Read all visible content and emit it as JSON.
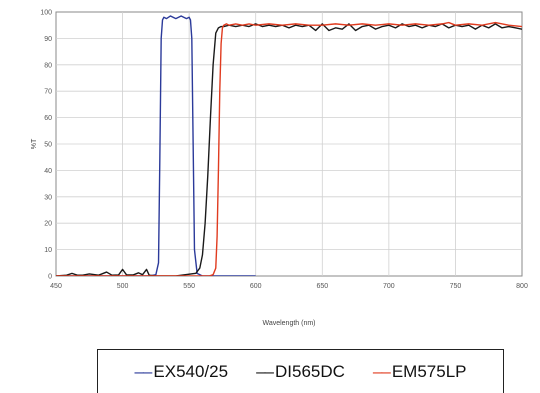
{
  "chart_data": {
    "type": "line",
    "title": "",
    "xlabel": "Wavelength (nm)",
    "ylabel": "%T",
    "xlim": [
      450,
      800
    ],
    "ylim": [
      0,
      100
    ],
    "grid": true,
    "legend_position": "bottom",
    "x_ticks": [
      450,
      500,
      550,
      600,
      650,
      700,
      750,
      800
    ],
    "y_ticks": [
      0,
      10,
      20,
      30,
      40,
      50,
      60,
      70,
      80,
      90,
      100
    ],
    "x_tick_labels": [
      "450",
      "500",
      "550",
      "600",
      "650",
      "700",
      "750",
      "800"
    ],
    "y_tick_labels": [
      "0",
      "10",
      "20",
      "30",
      "40",
      "50",
      "60",
      "70",
      "80",
      "90",
      "100"
    ],
    "series": [
      {
        "name": "EX540/25",
        "color": "#2b3a9a",
        "x": [
          450,
          520,
          525,
          527,
          528,
          529,
          530,
          531,
          533,
          536,
          540,
          544,
          548,
          550,
          551,
          552,
          553,
          554,
          556,
          560,
          600
        ],
        "y": [
          0,
          0,
          0.5,
          5,
          45,
          90,
          97,
          98,
          97.5,
          98.5,
          97.5,
          98.5,
          97.5,
          98,
          97,
          90,
          50,
          10,
          1,
          0,
          0
        ]
      },
      {
        "name": "DI565DC",
        "color": "#1a1a1a",
        "x": [
          450,
          458,
          462,
          466,
          470,
          475,
          482,
          488,
          492,
          497,
          500,
          503,
          508,
          512,
          515,
          518,
          520,
          525,
          540,
          555,
          558,
          560,
          562,
          564,
          566,
          568,
          570,
          572,
          574,
          576,
          580,
          585,
          590,
          595,
          600,
          605,
          610,
          615,
          620,
          625,
          630,
          635,
          640,
          645,
          650,
          655,
          660,
          665,
          670,
          675,
          680,
          685,
          690,
          695,
          700,
          705,
          710,
          715,
          720,
          725,
          730,
          735,
          740,
          745,
          750,
          755,
          760,
          765,
          770,
          775,
          780,
          785,
          790,
          795,
          800
        ],
        "y": [
          0,
          0.3,
          1,
          0.3,
          0.3,
          0.8,
          0.3,
          1.5,
          0.3,
          0.4,
          2.5,
          0.4,
          0.4,
          1.2,
          0.5,
          2.5,
          0.3,
          0,
          0,
          1,
          3,
          8,
          20,
          38,
          60,
          80,
          92,
          94,
          94.5,
          94.5,
          95,
          94.5,
          95,
          94.5,
          95.5,
          94.5,
          95,
          94.5,
          95,
          94,
          95,
          94.5,
          95,
          93,
          95.5,
          93,
          94,
          93.5,
          95.5,
          93,
          94.5,
          95,
          93.5,
          94.5,
          95,
          94,
          95.5,
          94.5,
          95,
          94,
          95,
          94.5,
          95.5,
          94,
          95,
          94.5,
          95,
          93.5,
          95,
          94,
          95.5,
          94,
          94.5,
          94,
          93.5
        ]
      },
      {
        "name": "EM575LP",
        "color": "#e03b1f",
        "x": [
          450,
          565,
          568,
          570,
          571,
          572,
          573,
          574,
          575,
          576,
          578,
          580,
          585,
          590,
          595,
          600,
          610,
          620,
          630,
          640,
          650,
          660,
          670,
          680,
          690,
          700,
          710,
          720,
          730,
          740,
          745,
          750,
          760,
          770,
          780,
          790,
          800
        ],
        "y": [
          0,
          0,
          0.5,
          3,
          15,
          40,
          70,
          88,
          94,
          95,
          95.5,
          95,
          95.5,
          95,
          95.5,
          95,
          95.5,
          95,
          95.5,
          95,
          95,
          95.5,
          95,
          95.5,
          95,
          95.5,
          95,
          95.5,
          95,
          95.5,
          96,
          95,
          95.5,
          95,
          96,
          95,
          94.5
        ]
      }
    ]
  }
}
